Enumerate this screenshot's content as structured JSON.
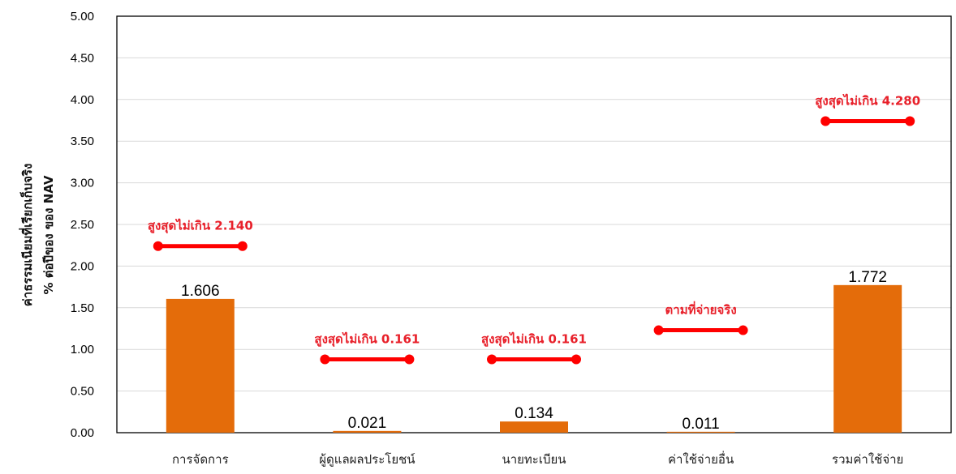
{
  "chart_data": {
    "type": "bar",
    "title": "",
    "ylabel_lines": [
      "ค่าธรรมเนียมที่เรียกเก็บจริง",
      "% ต่อปีของ ของ NAV"
    ],
    "ylim": [
      0,
      5
    ],
    "yticks": [
      "0.00",
      "0.50",
      "1.00",
      "1.50",
      "2.00",
      "2.50",
      "3.00",
      "3.50",
      "4.00",
      "4.50",
      "5.00"
    ],
    "categories": [
      "การจัดการ",
      "ผู้ดูแลผลประโยชน์",
      "นายทะเบียน",
      "ค่าใช้จ่ายอื่น",
      "รวมค่าใช้จ่าย"
    ],
    "values": [
      1.606,
      0.021,
      0.134,
      0.011,
      1.772
    ],
    "value_labels": [
      "1.606",
      "0.021",
      "0.134",
      "0.011",
      "1.772"
    ],
    "caps": [
      {
        "label": "สูงสุดไม่เกิน 2.140",
        "value": 2.24
      },
      {
        "label": "สูงสุดไม่เกิน 0.161",
        "value": 0.88
      },
      {
        "label": "สูงสุดไม่เกิน 0.161",
        "value": 0.88
      },
      {
        "label": "ตามที่จ่ายจริง",
        "value": 1.23
      },
      {
        "label": "สูงสุดไม่เกิน 4.280",
        "value": 3.74
      }
    ],
    "grid": true,
    "legend": "none",
    "colors": {
      "bar": "#E46C0A",
      "cap": "#FF0000",
      "cap_text": "#E8202A",
      "grid": "#D9D9D9"
    }
  }
}
